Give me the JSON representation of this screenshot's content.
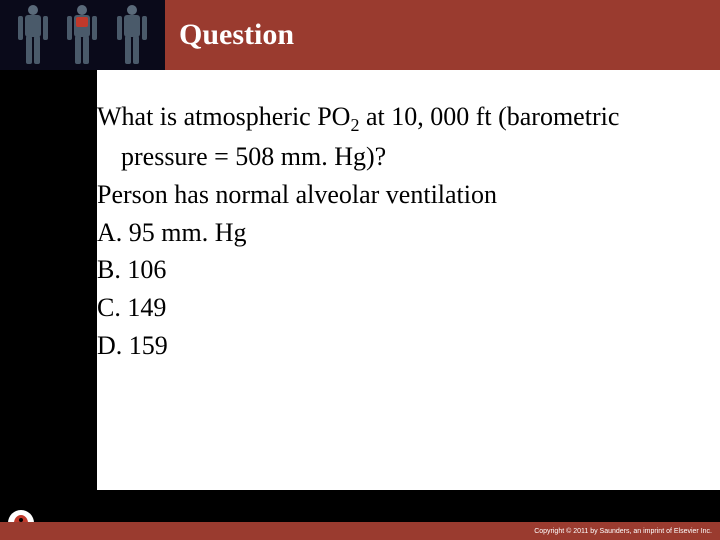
{
  "header": {
    "title": "Question",
    "bg_color": "#9a3b2f",
    "title_color": "#ffffff",
    "title_fontsize": 30
  },
  "content": {
    "bg_color": "#ffffff",
    "text_color": "#000000",
    "fontsize": 26,
    "question_line1_a": "What is atmospheric PO",
    "question_sub": "2",
    "question_line1_b": " at 10, 000 ft (barometric",
    "question_line2": "pressure = 508 mm. Hg)?",
    "context": "Person has normal alveolar ventilation",
    "options": {
      "A": "A. 95 mm. Hg",
      "B": "B. 106",
      "C": "C. 149",
      "D": "D. 159"
    }
  },
  "footer": {
    "bg_color": "#9a3b2f",
    "text": "Copyright © 2011 by Saunders, an imprint of Elsevier Inc.",
    "text_color": "#ffffff"
  },
  "page_bg": "#000000"
}
